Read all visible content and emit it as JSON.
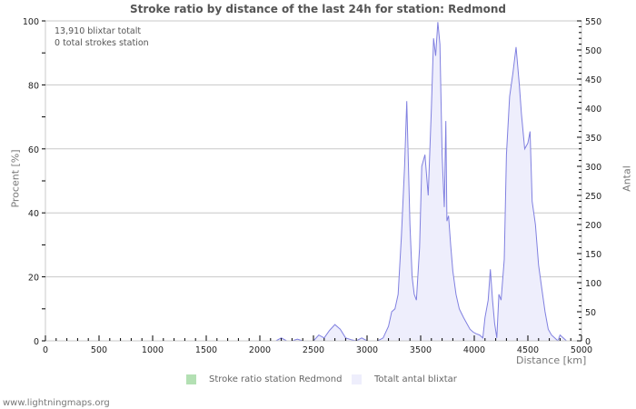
{
  "chart_data": {
    "type": "area",
    "title": "Stroke ratio by distance of the last 24h for station: Redmond",
    "xlabel": "Distance   [km]",
    "ylabel_left": "Procent   [%]",
    "ylabel_right": "Antal",
    "xlim": [
      0,
      5000
    ],
    "ylim_left": [
      0,
      100
    ],
    "ylim_right": [
      0,
      550
    ],
    "x_ticks": [
      0,
      500,
      1000,
      1500,
      2000,
      2500,
      3000,
      3500,
      4000,
      4500,
      5000
    ],
    "y_left_ticks": [
      0,
      20,
      40,
      60,
      80,
      100
    ],
    "y_right_ticks": [
      0,
      50,
      100,
      150,
      200,
      250,
      300,
      350,
      400,
      450,
      500,
      550
    ],
    "grid": "horizontal",
    "legend_position": "bottom",
    "annotations": [
      "13,910 blixtar totalt",
      "0 total strokes station"
    ],
    "series": [
      {
        "name": "Stroke ratio station Redmond",
        "axis": "left",
        "color": "#b3e0b3",
        "x": [
          0,
          5000
        ],
        "values": [
          0,
          0
        ]
      },
      {
        "name": "Totalt antal blixtar",
        "axis": "right",
        "color": "#8080e0",
        "fill": "#eeeefc",
        "x": [
          0,
          2150,
          2200,
          2250,
          2300,
          2350,
          2400,
          2450,
          2500,
          2550,
          2600,
          2650,
          2700,
          2750,
          2800,
          2850,
          2900,
          2950,
          3000,
          3100,
          3150,
          3200,
          3230,
          3260,
          3290,
          3320,
          3350,
          3370,
          3400,
          3420,
          3440,
          3460,
          3490,
          3510,
          3540,
          3570,
          3600,
          3620,
          3640,
          3660,
          3680,
          3700,
          3720,
          3735,
          3745,
          3760,
          3780,
          3800,
          3830,
          3860,
          3900,
          3930,
          3960,
          3990,
          4020,
          4050,
          4080,
          4100,
          4130,
          4150,
          4170,
          4190,
          4210,
          4230,
          4250,
          4280,
          4300,
          4330,
          4360,
          4390,
          4420,
          4440,
          4470,
          4500,
          4520,
          4540,
          4570,
          4600,
          4630,
          4660,
          4690,
          4720,
          4750,
          4780,
          4800,
          4830,
          4860,
          4900,
          5000
        ],
        "values": [
          0,
          0,
          5,
          0,
          0,
          3,
          0,
          0,
          0,
          10,
          5,
          18,
          28,
          20,
          5,
          2,
          0,
          5,
          0,
          0,
          5,
          25,
          50,
          55,
          80,
          180,
          300,
          412,
          200,
          110,
          80,
          70,
          160,
          300,
          320,
          250,
          400,
          520,
          490,
          548,
          510,
          320,
          230,
          378,
          206,
          215,
          165,
          120,
          80,
          55,
          40,
          30,
          20,
          15,
          12,
          10,
          5,
          40,
          70,
          123,
          70,
          30,
          5,
          80,
          70,
          140,
          320,
          420,
          460,
          505,
          440,
          390,
          330,
          340,
          360,
          240,
          200,
          130,
          90,
          50,
          20,
          10,
          5,
          0,
          10,
          5,
          0,
          0,
          0
        ]
      }
    ]
  },
  "title": "Stroke ratio by distance of the last 24h for station: Redmond",
  "info": {
    "line1": "13,910 blixtar totalt",
    "line2": "0 total strokes station"
  },
  "axes": {
    "xlabel": "Distance   [km]",
    "ylabel_left": "Procent   [%]",
    "ylabel_right": "Antal"
  },
  "legend": {
    "item1": "Stroke ratio station Redmond",
    "item1_color": "#b3e0b3",
    "item2": "Totalt antal blixtar",
    "item2_color": "#eeeefc"
  },
  "credit": "www.lightningmaps.org"
}
